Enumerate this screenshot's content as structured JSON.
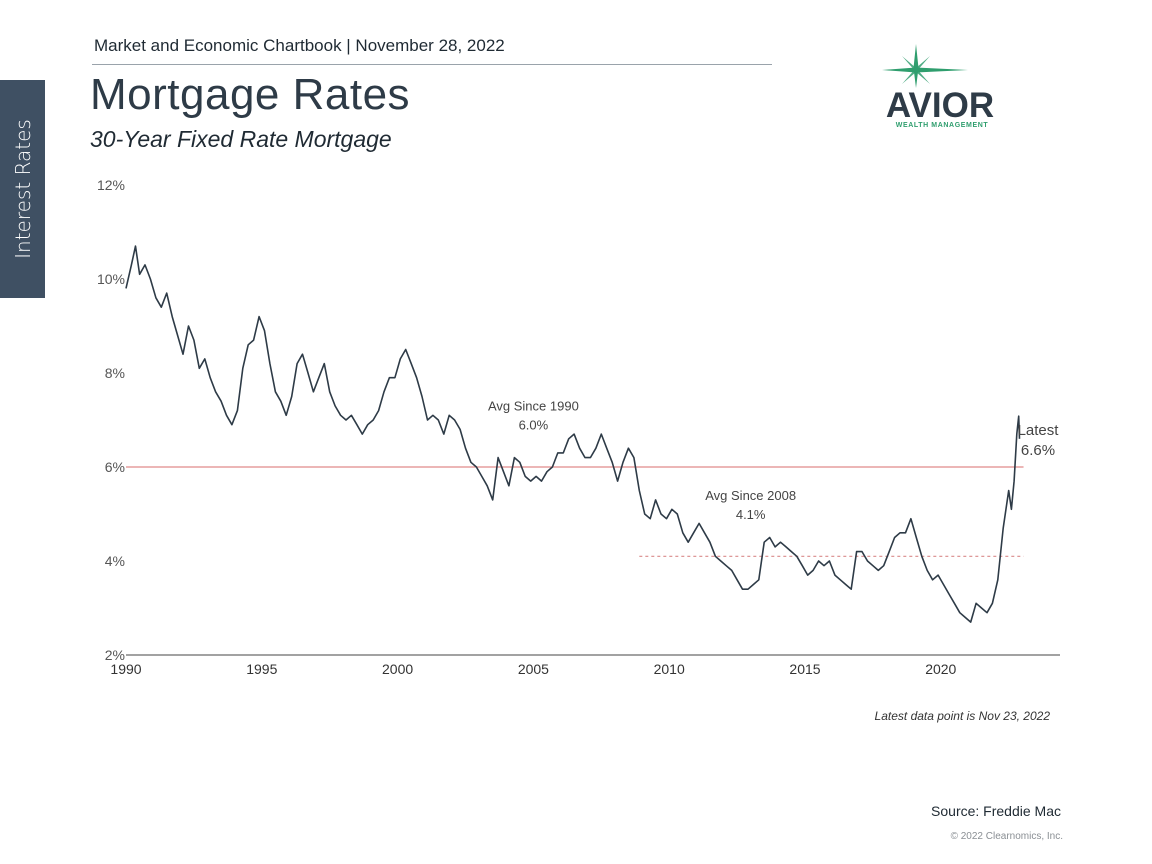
{
  "side_tab": {
    "label": "Interest Rates"
  },
  "header": {
    "line": "Market and Economic Chartbook | November 28, 2022"
  },
  "logo": {
    "word": "AVIOR",
    "tag": "WEALTH MANAGEMENT",
    "icon": "compass-star-icon",
    "accent": "#2f9e6e"
  },
  "chart_data": {
    "type": "line",
    "title": "Mortgage Rates",
    "subtitle": "30-Year Fixed Rate Mortgage",
    "xlabel": "",
    "ylabel": "",
    "xlim": [
      1990,
      2024.5
    ],
    "ylim": [
      2,
      12
    ],
    "x_ticks": [
      1990,
      1995,
      2000,
      2005,
      2010,
      2015,
      2020
    ],
    "y_ticks": [
      "2%",
      "4%",
      "6%",
      "8%",
      "10%",
      "12%"
    ],
    "grid": false,
    "line_color": "#2e3b47",
    "series": [
      {
        "points": [
          [
            1990.0,
            9.8
          ],
          [
            1990.2,
            10.3
          ],
          [
            1990.35,
            10.7
          ],
          [
            1990.5,
            10.1
          ],
          [
            1990.7,
            10.3
          ],
          [
            1990.9,
            10.0
          ],
          [
            1991.1,
            9.6
          ],
          [
            1991.3,
            9.4
          ],
          [
            1991.5,
            9.7
          ],
          [
            1991.7,
            9.2
          ],
          [
            1991.9,
            8.8
          ],
          [
            1992.1,
            8.4
          ],
          [
            1992.3,
            9.0
          ],
          [
            1992.5,
            8.7
          ],
          [
            1992.7,
            8.1
          ],
          [
            1992.9,
            8.3
          ],
          [
            1993.1,
            7.9
          ],
          [
            1993.3,
            7.6
          ],
          [
            1993.5,
            7.4
          ],
          [
            1993.7,
            7.1
          ],
          [
            1993.9,
            6.9
          ],
          [
            1994.1,
            7.2
          ],
          [
            1994.3,
            8.1
          ],
          [
            1994.5,
            8.6
          ],
          [
            1994.7,
            8.7
          ],
          [
            1994.9,
            9.2
          ],
          [
            1995.1,
            8.9
          ],
          [
            1995.3,
            8.2
          ],
          [
            1995.5,
            7.6
          ],
          [
            1995.7,
            7.4
          ],
          [
            1995.9,
            7.1
          ],
          [
            1996.1,
            7.5
          ],
          [
            1996.3,
            8.2
          ],
          [
            1996.5,
            8.4
          ],
          [
            1996.7,
            8.0
          ],
          [
            1996.9,
            7.6
          ],
          [
            1997.1,
            7.9
          ],
          [
            1997.3,
            8.2
          ],
          [
            1997.5,
            7.6
          ],
          [
            1997.7,
            7.3
          ],
          [
            1997.9,
            7.1
          ],
          [
            1998.1,
            7.0
          ],
          [
            1998.3,
            7.1
          ],
          [
            1998.5,
            6.9
          ],
          [
            1998.7,
            6.7
          ],
          [
            1998.9,
            6.9
          ],
          [
            1999.1,
            7.0
          ],
          [
            1999.3,
            7.2
          ],
          [
            1999.5,
            7.6
          ],
          [
            1999.7,
            7.9
          ],
          [
            1999.9,
            7.9
          ],
          [
            2000.1,
            8.3
          ],
          [
            2000.3,
            8.5
          ],
          [
            2000.5,
            8.2
          ],
          [
            2000.7,
            7.9
          ],
          [
            2000.9,
            7.5
          ],
          [
            2001.1,
            7.0
          ],
          [
            2001.3,
            7.1
          ],
          [
            2001.5,
            7.0
          ],
          [
            2001.7,
            6.7
          ],
          [
            2001.9,
            7.1
          ],
          [
            2002.1,
            7.0
          ],
          [
            2002.3,
            6.8
          ],
          [
            2002.5,
            6.4
          ],
          [
            2002.7,
            6.1
          ],
          [
            2002.9,
            6.0
          ],
          [
            2003.1,
            5.8
          ],
          [
            2003.3,
            5.6
          ],
          [
            2003.5,
            5.3
          ],
          [
            2003.7,
            6.2
          ],
          [
            2003.9,
            5.9
          ],
          [
            2004.1,
            5.6
          ],
          [
            2004.3,
            6.2
          ],
          [
            2004.5,
            6.1
          ],
          [
            2004.7,
            5.8
          ],
          [
            2004.9,
            5.7
          ],
          [
            2005.1,
            5.8
          ],
          [
            2005.3,
            5.7
          ],
          [
            2005.5,
            5.9
          ],
          [
            2005.7,
            6.0
          ],
          [
            2005.9,
            6.3
          ],
          [
            2006.1,
            6.3
          ],
          [
            2006.3,
            6.6
          ],
          [
            2006.5,
            6.7
          ],
          [
            2006.7,
            6.4
          ],
          [
            2006.9,
            6.2
          ],
          [
            2007.1,
            6.2
          ],
          [
            2007.3,
            6.4
          ],
          [
            2007.5,
            6.7
          ],
          [
            2007.7,
            6.4
          ],
          [
            2007.9,
            6.1
          ],
          [
            2008.1,
            5.7
          ],
          [
            2008.3,
            6.1
          ],
          [
            2008.5,
            6.4
          ],
          [
            2008.7,
            6.2
          ],
          [
            2008.9,
            5.5
          ],
          [
            2009.1,
            5.0
          ],
          [
            2009.3,
            4.9
          ],
          [
            2009.5,
            5.3
          ],
          [
            2009.7,
            5.0
          ],
          [
            2009.9,
            4.9
          ],
          [
            2010.1,
            5.1
          ],
          [
            2010.3,
            5.0
          ],
          [
            2010.5,
            4.6
          ],
          [
            2010.7,
            4.4
          ],
          [
            2010.9,
            4.6
          ],
          [
            2011.1,
            4.8
          ],
          [
            2011.3,
            4.6
          ],
          [
            2011.5,
            4.4
          ],
          [
            2011.7,
            4.1
          ],
          [
            2011.9,
            4.0
          ],
          [
            2012.1,
            3.9
          ],
          [
            2012.3,
            3.8
          ],
          [
            2012.5,
            3.6
          ],
          [
            2012.7,
            3.4
          ],
          [
            2012.9,
            3.4
          ],
          [
            2013.1,
            3.5
          ],
          [
            2013.3,
            3.6
          ],
          [
            2013.5,
            4.4
          ],
          [
            2013.7,
            4.5
          ],
          [
            2013.9,
            4.3
          ],
          [
            2014.1,
            4.4
          ],
          [
            2014.3,
            4.3
          ],
          [
            2014.5,
            4.2
          ],
          [
            2014.7,
            4.1
          ],
          [
            2014.9,
            3.9
          ],
          [
            2015.1,
            3.7
          ],
          [
            2015.3,
            3.8
          ],
          [
            2015.5,
            4.0
          ],
          [
            2015.7,
            3.9
          ],
          [
            2015.9,
            4.0
          ],
          [
            2016.1,
            3.7
          ],
          [
            2016.3,
            3.6
          ],
          [
            2016.5,
            3.5
          ],
          [
            2016.7,
            3.4
          ],
          [
            2016.9,
            4.2
          ],
          [
            2017.1,
            4.2
          ],
          [
            2017.3,
            4.0
          ],
          [
            2017.5,
            3.9
          ],
          [
            2017.7,
            3.8
          ],
          [
            2017.9,
            3.9
          ],
          [
            2018.1,
            4.2
          ],
          [
            2018.3,
            4.5
          ],
          [
            2018.5,
            4.6
          ],
          [
            2018.7,
            4.6
          ],
          [
            2018.9,
            4.9
          ],
          [
            2019.1,
            4.5
          ],
          [
            2019.3,
            4.1
          ],
          [
            2019.5,
            3.8
          ],
          [
            2019.7,
            3.6
          ],
          [
            2019.9,
            3.7
          ],
          [
            2020.1,
            3.5
          ],
          [
            2020.3,
            3.3
          ],
          [
            2020.5,
            3.1
          ],
          [
            2020.7,
            2.9
          ],
          [
            2020.9,
            2.8
          ],
          [
            2021.1,
            2.7
          ],
          [
            2021.3,
            3.1
          ],
          [
            2021.5,
            3.0
          ],
          [
            2021.7,
            2.9
          ],
          [
            2021.9,
            3.1
          ],
          [
            2022.1,
            3.6
          ],
          [
            2022.3,
            4.7
          ],
          [
            2022.5,
            5.5
          ],
          [
            2022.6,
            5.1
          ],
          [
            2022.7,
            5.7
          ],
          [
            2022.8,
            6.7
          ],
          [
            2022.87,
            7.08
          ],
          [
            2022.9,
            6.6
          ]
        ]
      }
    ],
    "reference_lines": [
      {
        "label": "Avg Since 1990",
        "value_label": "6.0%",
        "y": 6.0,
        "x_start": 1990,
        "x_end": 2022.9,
        "style": "solid",
        "color": "#e08a8a"
      },
      {
        "label": "Avg Since 2008",
        "value_label": "4.1%",
        "y": 4.1,
        "x_start": 2008.9,
        "x_end": 2022.9,
        "style": "dashed",
        "color": "#d98a8a"
      }
    ],
    "annotations": [
      {
        "label": "Latest",
        "value_label": "6.6%",
        "x": 2022.9,
        "y": 6.6
      }
    ]
  },
  "footer": {
    "note": "Latest data point is Nov 23, 2022",
    "source": "Source: Freddie Mac",
    "copyright": "© 2022 Clearnomics, Inc."
  }
}
